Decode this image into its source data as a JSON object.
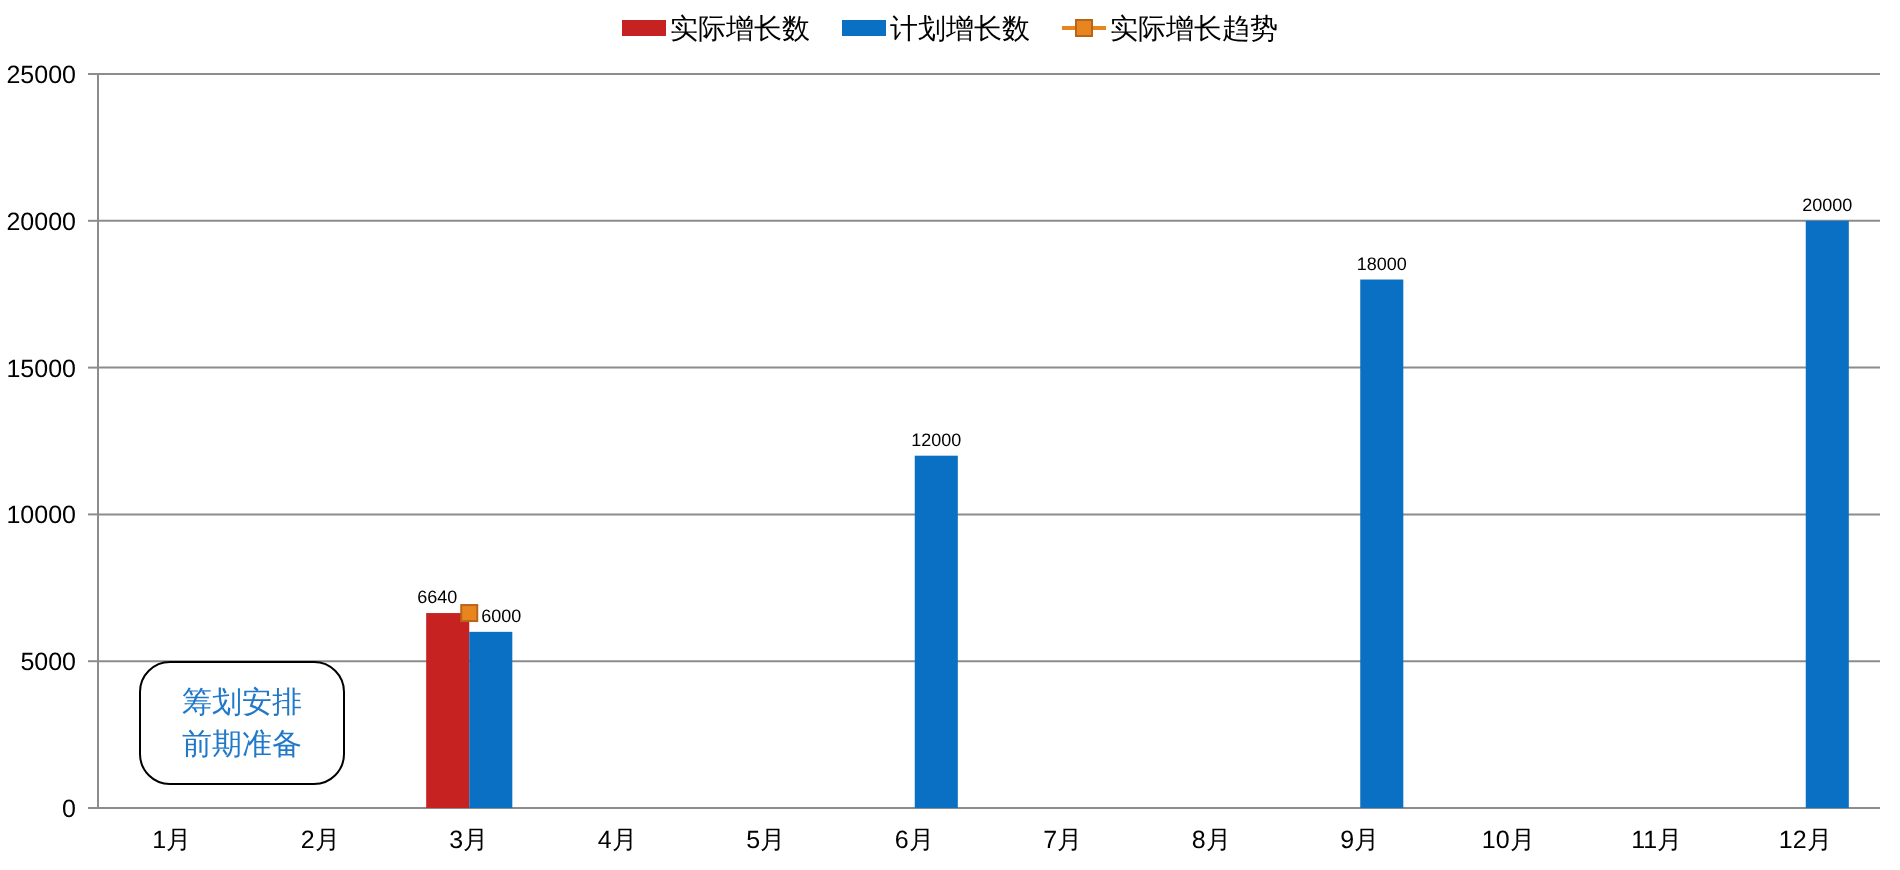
{
  "chart_data": {
    "type": "bar",
    "categories": [
      "1月",
      "2月",
      "3月",
      "4月",
      "5月",
      "6月",
      "7月",
      "8月",
      "9月",
      "10月",
      "11月",
      "12月"
    ],
    "series": [
      {
        "name": "实际增长数",
        "color": "#c62222",
        "values": [
          null,
          null,
          6640,
          null,
          null,
          null,
          null,
          null,
          null,
          null,
          null,
          null
        ],
        "value_labels": [
          null,
          null,
          "6640",
          null,
          null,
          null,
          null,
          null,
          null,
          null,
          null,
          null
        ]
      },
      {
        "name": "计划增长数",
        "color": "#0a70c4",
        "values": [
          null,
          null,
          6000,
          null,
          null,
          12000,
          null,
          null,
          18000,
          null,
          null,
          20000
        ],
        "value_labels": [
          null,
          null,
          "6000",
          null,
          null,
          "12000",
          null,
          null,
          "18000",
          null,
          null,
          "20000"
        ]
      },
      {
        "name": "实际增长趋势",
        "type": "line",
        "color": "#e8851e",
        "values": [
          null,
          null,
          6640,
          null,
          null,
          null,
          null,
          null,
          null,
          null,
          null,
          null
        ]
      }
    ],
    "ylim": [
      0,
      25000
    ],
    "yticks": [
      0,
      5000,
      10000,
      15000,
      20000,
      25000
    ],
    "grid": "y",
    "legend": "top",
    "marker": "square",
    "annotations": [
      "筹划安排前期准备"
    ]
  }
}
